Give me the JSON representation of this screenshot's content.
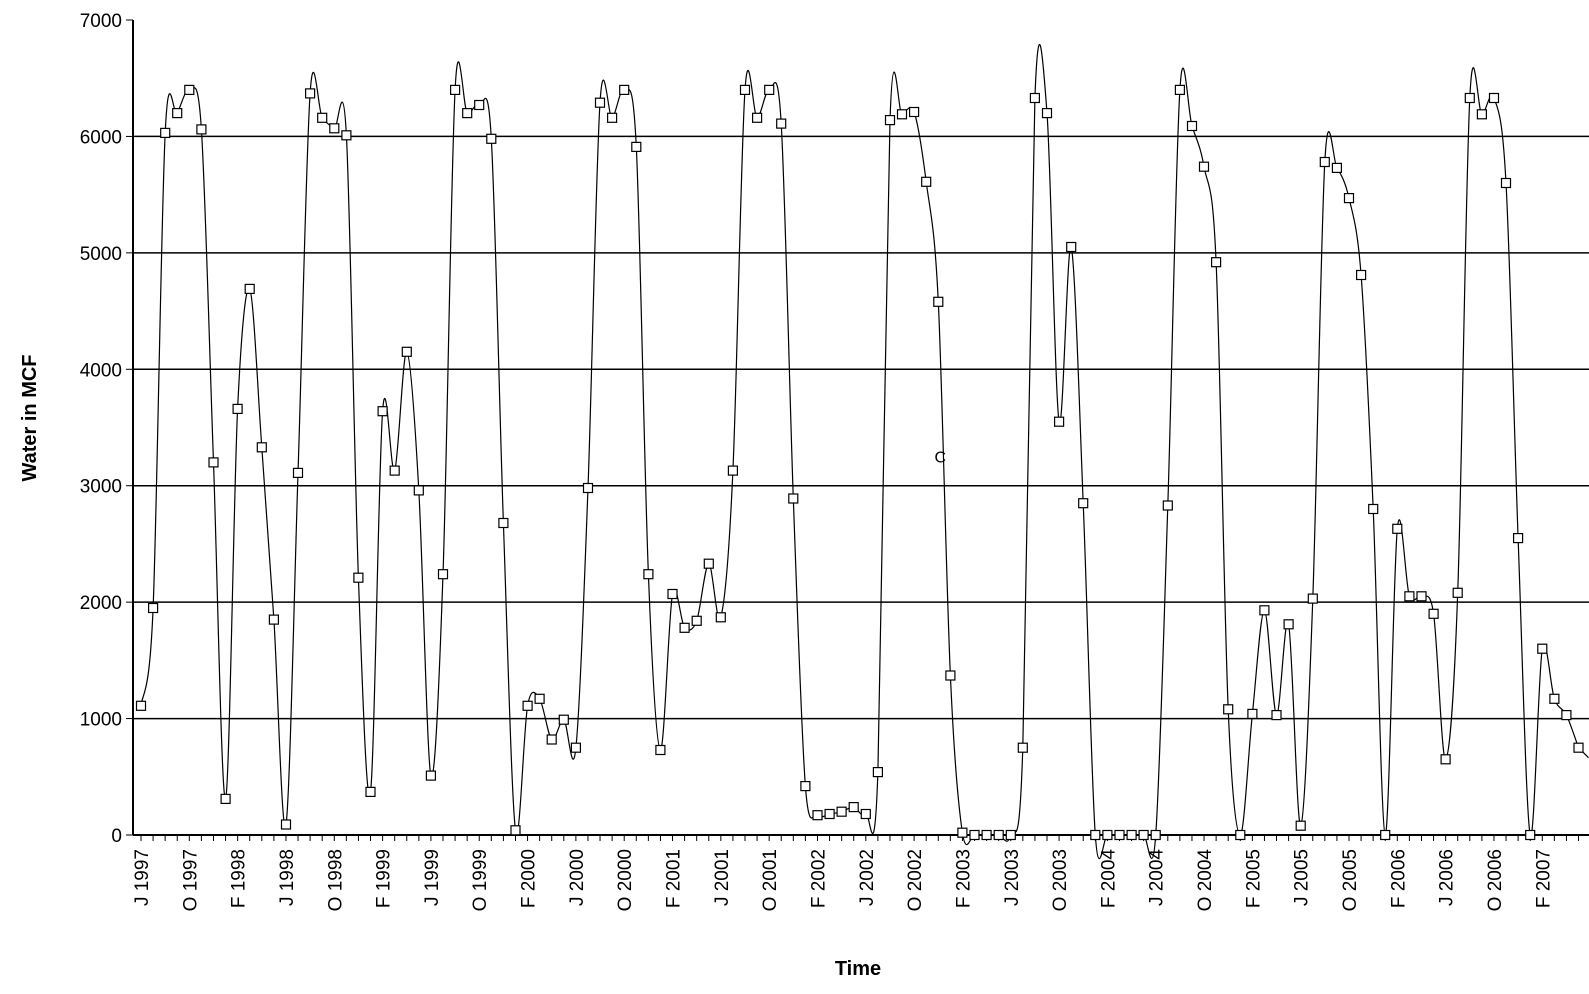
{
  "chart_data": {
    "type": "line",
    "title": "",
    "xlabel": "Time",
    "ylabel": "Water in MCF",
    "ylim": [
      0,
      7000
    ],
    "yticks": [
      0,
      1000,
      2000,
      3000,
      4000,
      5000,
      6000,
      7000
    ],
    "grid": "horizontal",
    "legend": "none",
    "marker": "hollow-square",
    "x_start": "1997-01",
    "x_interval": "month",
    "xtick_labels": [
      "J 1997",
      "O 1997",
      "F 1998",
      "J 1998",
      "O 1998",
      "F 1999",
      "J 1999",
      "O 1999",
      "F 2000",
      "J 2000",
      "O 2000",
      "F 2001",
      "J 2001",
      "O 2001",
      "F 2002",
      "J 2002",
      "O 2002",
      "F 2003",
      "J 2003",
      "O 2003",
      "F 2004",
      "J 2004",
      "O 2004",
      "F 2005",
      "J 2005",
      "O 2005",
      "F 2006",
      "J 2006",
      "O 2006",
      "F 2007"
    ],
    "xtick_label_index": [
      0,
      4,
      8,
      12,
      16,
      20,
      24,
      28,
      32,
      36,
      40,
      44,
      48,
      52,
      56,
      60,
      64,
      68,
      72,
      76,
      80,
      84,
      88,
      92,
      96,
      100,
      104,
      108,
      112,
      116
    ],
    "annotations": [
      {
        "text": "C",
        "x": "2002-07",
        "y": 3250
      }
    ],
    "series": [
      {
        "values": [
          1110,
          1950,
          6030,
          6200,
          6400,
          6060,
          3200,
          310,
          3660,
          4690,
          3330,
          1850,
          90,
          3110,
          6370,
          6160,
          6070,
          6010,
          2210,
          370,
          3640,
          3130,
          4150,
          2960,
          510,
          2240,
          6400,
          6200,
          6270,
          5980,
          2680,
          40,
          1110,
          1170,
          820,
          990,
          750,
          2980,
          6290,
          6160,
          6400,
          5910,
          2240,
          730,
          2070,
          1780,
          1840,
          2330,
          1870,
          3130,
          6400,
          6160,
          6400,
          6110,
          2890,
          420,
          170,
          180,
          200,
          240,
          180,
          540,
          6140,
          6190,
          6210,
          5610,
          4580,
          1370,
          20,
          0,
          0,
          0,
          0,
          750,
          6330,
          6200,
          3550,
          5050,
          2850,
          0,
          0,
          0,
          0,
          0,
          0,
          2830,
          6400,
          6090,
          5740,
          4920,
          1080,
          0,
          1040,
          1930,
          1030,
          1810,
          80,
          2030,
          5780,
          5730,
          5470,
          4810,
          2800,
          0,
          2630,
          2050,
          2050,
          1900,
          650,
          2080,
          6330,
          6190,
          6330,
          5600,
          2550,
          0,
          1600,
          1170,
          1030,
          750
        ]
      }
    ]
  }
}
